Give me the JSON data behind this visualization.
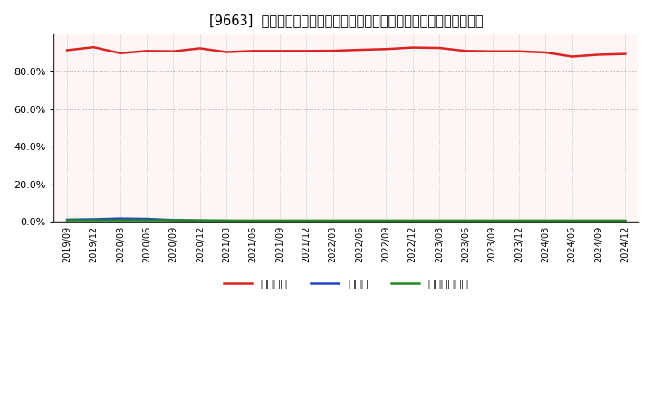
{
  "title": "[9663]  自己資本、のれん、繰延税金資産の総資産に対する比率の推移",
  "ylim": [
    0.0,
    1.0
  ],
  "yticks": [
    0.0,
    0.2,
    0.4,
    0.6,
    0.8
  ],
  "background_color": "#ffffff",
  "plot_background": "#fff5f5",
  "grid_color": "#aaaaaa",
  "dates": [
    "2019/09",
    "2019/12",
    "2020/03",
    "2020/06",
    "2020/09",
    "2020/12",
    "2021/03",
    "2021/06",
    "2021/09",
    "2021/12",
    "2022/03",
    "2022/06",
    "2022/09",
    "2022/12",
    "2023/03",
    "2023/06",
    "2023/09",
    "2023/12",
    "2024/03",
    "2024/06",
    "2024/09",
    "2024/12"
  ],
  "jikoshihon": [
    0.916,
    0.932,
    0.9,
    0.912,
    0.91,
    0.926,
    0.906,
    0.912,
    0.912,
    0.912,
    0.913,
    0.918,
    0.922,
    0.93,
    0.928,
    0.912,
    0.91,
    0.91,
    0.904,
    0.882,
    0.892,
    0.896
  ],
  "noren": [
    0.01,
    0.012,
    0.016,
    0.014,
    0.008,
    0.005,
    0.004,
    0.003,
    0.003,
    0.003,
    0.003,
    0.003,
    0.003,
    0.003,
    0.001,
    0.001,
    0.001,
    0.001,
    0.001,
    0.001,
    0.001,
    0.001
  ],
  "kurinobezeikinsisan": [
    0.007,
    0.007,
    0.007,
    0.007,
    0.007,
    0.006,
    0.005,
    0.005,
    0.005,
    0.005,
    0.005,
    0.005,
    0.005,
    0.005,
    0.005,
    0.005,
    0.005,
    0.005,
    0.005,
    0.005,
    0.005,
    0.005
  ],
  "jikoshihon_color": "#dd2222",
  "noren_color": "#2244cc",
  "kurinobe_color": "#228822",
  "legend_labels": [
    "自己資本",
    "のれん",
    "繰延税金資産"
  ],
  "line_width": 1.8
}
